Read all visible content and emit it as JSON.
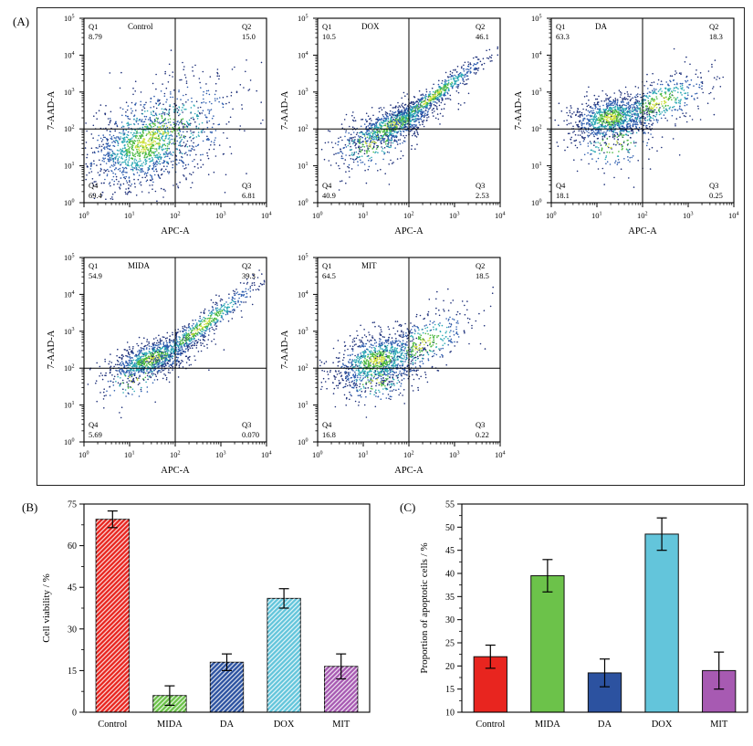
{
  "labels": {
    "a": "(A)",
    "b": "(B)",
    "c": "(C)"
  },
  "flow_panel": {
    "xlabel": "APC-A",
    "ylabel": "7-AAD-A",
    "x_decades": 4,
    "y_decades": 5,
    "gate_x_decade": 2,
    "gate_y_decade": 2,
    "point_colors": [
      "#ccdf3a",
      "#4ab83e",
      "#2ba8b4",
      "#2c5cae",
      "#1c2e78"
    ]
  },
  "chart_data": [
    {
      "id": "A1",
      "type": "scatter",
      "title": "Control",
      "xlabel": "APC-A",
      "ylabel": "7-AAD-A",
      "xlim_log10": [
        0,
        4
      ],
      "ylim_log10": [
        0,
        5
      ],
      "quadrants": {
        "Q1": "8.79",
        "Q2": "15.0",
        "Q3": "6.81",
        "Q4": "69.4"
      },
      "seed": 11,
      "clusters": [
        {
          "n": 900,
          "cx": 1.3,
          "cy": 1.55,
          "sx": 0.55,
          "sy": 0.55,
          "corr": 0.35
        },
        {
          "n": 750,
          "cx": 1.6,
          "cy": 1.8,
          "sx": 0.95,
          "sy": 0.85,
          "corr": 0.45
        }
      ]
    },
    {
      "id": "A2",
      "type": "scatter",
      "title": "DOX",
      "xlabel": "APC-A",
      "ylabel": "7-AAD-A",
      "xlim_log10": [
        0,
        4
      ],
      "ylim_log10": [
        0,
        5
      ],
      "quadrants": {
        "Q1": "10.5",
        "Q2": "46.1",
        "Q3": "2.53",
        "Q4": "40.9"
      },
      "seed": 22,
      "clusters": [
        {
          "n": 850,
          "cx": 1.65,
          "cy": 2.1,
          "sx": 0.5,
          "sy": 0.35,
          "corr": 0.75
        },
        {
          "n": 600,
          "cx": 2.5,
          "cy": 2.85,
          "sx": 0.65,
          "sy": 0.6,
          "corr": 0.97
        },
        {
          "n": 250,
          "cx": 1.2,
          "cy": 1.65,
          "sx": 0.5,
          "sy": 0.45,
          "corr": 0.35
        }
      ]
    },
    {
      "id": "A3",
      "type": "scatter",
      "title": "DA",
      "xlabel": "APC-A",
      "ylabel": "7-AAD-A",
      "xlim_log10": [
        0,
        4
      ],
      "ylim_log10": [
        0,
        5
      ],
      "quadrants": {
        "Q1": "63.3",
        "Q2": "18.3",
        "Q3": "0.25",
        "Q4": "18.1"
      },
      "seed": 33,
      "clusters": [
        {
          "n": 950,
          "cx": 1.3,
          "cy": 2.3,
          "sx": 0.42,
          "sy": 0.3,
          "corr": 0.25
        },
        {
          "n": 480,
          "cx": 2.35,
          "cy": 2.7,
          "sx": 0.6,
          "sy": 0.45,
          "corr": 0.65
        },
        {
          "n": 170,
          "cx": 1.4,
          "cy": 1.6,
          "sx": 0.5,
          "sy": 0.4,
          "corr": 0.2
        }
      ]
    },
    {
      "id": "A4",
      "type": "scatter",
      "title": "MIDA",
      "xlabel": "APC-A",
      "ylabel": "7-AAD-A",
      "xlim_log10": [
        0,
        4
      ],
      "ylim_log10": [
        0,
        5
      ],
      "quadrants": {
        "Q1": "54.9",
        "Q2": "39.3",
        "Q3": "0.070",
        "Q4": "5.69"
      },
      "seed": 44,
      "clusters": [
        {
          "n": 900,
          "cx": 1.5,
          "cy": 2.25,
          "sx": 0.48,
          "sy": 0.3,
          "corr": 0.6
        },
        {
          "n": 620,
          "cx": 2.55,
          "cy": 3.1,
          "sx": 0.7,
          "sy": 0.68,
          "corr": 0.96
        },
        {
          "n": 110,
          "cx": 1.1,
          "cy": 1.7,
          "sx": 0.4,
          "sy": 0.35,
          "corr": 0.3
        }
      ]
    },
    {
      "id": "A5",
      "type": "scatter",
      "title": "MIT",
      "xlabel": "APC-A",
      "ylabel": "7-AAD-A",
      "xlim_log10": [
        0,
        4
      ],
      "ylim_log10": [
        0,
        5
      ],
      "quadrants": {
        "Q1": "64.5",
        "Q2": "18.5",
        "Q3": "0.22",
        "Q4": "16.8"
      },
      "seed": 55,
      "clusters": [
        {
          "n": 980,
          "cx": 1.3,
          "cy": 2.2,
          "sx": 0.5,
          "sy": 0.38,
          "corr": 0.35
        },
        {
          "n": 380,
          "cx": 2.3,
          "cy": 2.65,
          "sx": 0.55,
          "sy": 0.5,
          "corr": 0.6
        },
        {
          "n": 170,
          "cx": 1.3,
          "cy": 1.65,
          "sx": 0.45,
          "sy": 0.35,
          "corr": 0.2
        }
      ]
    },
    {
      "id": "B",
      "type": "bar",
      "categories": [
        "Control",
        "MIDA",
        "DA",
        "DOX",
        "MIT"
      ],
      "values": [
        69.5,
        6,
        18,
        41,
        16.5
      ],
      "errors": [
        3,
        3.5,
        3,
        3.5,
        4.5
      ],
      "title": "",
      "xlabel": "",
      "ylabel": "Cell viability / %",
      "ylim": [
        0,
        75
      ],
      "yticks": [
        0,
        15,
        30,
        45,
        60,
        75
      ],
      "colors": [
        "#e8251f",
        "#6cc24a",
        "#2c52a0",
        "#63c5db",
        "#a75ab2"
      ],
      "hatch": true
    },
    {
      "id": "C",
      "type": "bar",
      "categories": [
        "Control",
        "MIDA",
        "DA",
        "DOX",
        "MIT"
      ],
      "values": [
        22,
        39.5,
        18.5,
        48.5,
        19
      ],
      "errors": [
        2.5,
        3.5,
        3,
        3.5,
        4
      ],
      "title": "",
      "xlabel": "",
      "ylabel": "Proportion of apoptotic cells / %",
      "ylim": [
        10,
        55
      ],
      "yticks": [
        10,
        15,
        20,
        25,
        30,
        35,
        40,
        45,
        50,
        55
      ],
      "colors": [
        "#e8251f",
        "#6cc24a",
        "#2c52a0",
        "#63c5db",
        "#a75ab2"
      ],
      "hatch": false
    }
  ]
}
